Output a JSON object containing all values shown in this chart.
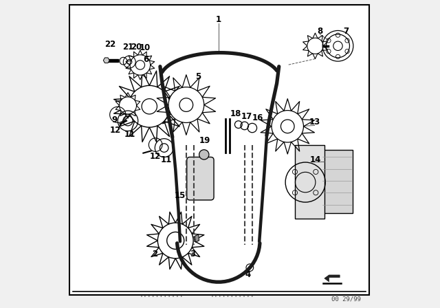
{
  "bg_color": "#f0f0f0",
  "border_color": "#000000",
  "line_color": "#000000",
  "text_color": "#000000",
  "footer_dots1": "...........",
  "footer_dots2": "...........",
  "diagram_number": "00 29/99"
}
